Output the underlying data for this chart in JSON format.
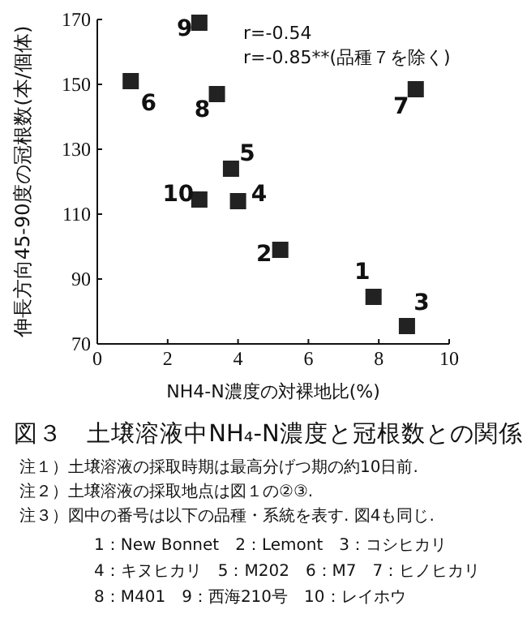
{
  "chart_data": {
    "type": "scatter",
    "title": "図３　土壌溶液中NH₄-N濃度と冠根数との関係",
    "xlabel": "NH4-N濃度の対裸地比(%)",
    "ylabel": "伸長方向45-90度の冠根数(本/個体)",
    "x": [
      7.85,
      5.2,
      8.8,
      4.0,
      3.8,
      0.95,
      9.05,
      3.4,
      2.9,
      2.9
    ],
    "series": [
      {
        "color": "#222222",
        "values": [
          84.5,
          99,
          75.5,
          114,
          124,
          151,
          148.5,
          147,
          169,
          114.5
        ]
      }
    ],
    "marker": "square",
    "grid": false,
    "xlim": [
      0,
      10
    ],
    "xticks": [
      0,
      2,
      4,
      6,
      8,
      10
    ],
    "ylim": [
      70,
      170
    ],
    "yticks": [
      70,
      90,
      110,
      130,
      150,
      170
    ],
    "annotations": [
      {
        "text": "1",
        "x": 7.85,
        "y": 84.5
      },
      {
        "text": "2",
        "x": 5.2,
        "y": 99
      },
      {
        "text": "3",
        "x": 8.8,
        "y": 75.5
      },
      {
        "text": "4",
        "x": 4.0,
        "y": 114
      },
      {
        "text": "5",
        "x": 3.8,
        "y": 124
      },
      {
        "text": "6",
        "x": 0.95,
        "y": 151
      },
      {
        "text": "7",
        "x": 9.05,
        "y": 148.5
      },
      {
        "text": "8",
        "x": 3.4,
        "y": 147
      },
      {
        "text": "9",
        "x": 2.9,
        "y": 169
      },
      {
        "text": "10",
        "x": 2.9,
        "y": 114.5
      },
      "r=-0.54",
      "r=-0.85**(品種７を除く)",
      "注１）土壌溶液の採取時期は最高分げつ期の約10日前.",
      "注２）土壌溶液の採取地点は図１の②③.",
      "注３）図中の番号は以下の品種・系統を表す. 図4も同じ.",
      "1：New Bonnet　2：Lemont　3：コシヒカリ",
      "4：キヌヒカリ　5：M202　6：M7　7：ヒノヒカリ",
      "8：M401　9：西海210号　10：レイホウ"
    ]
  }
}
